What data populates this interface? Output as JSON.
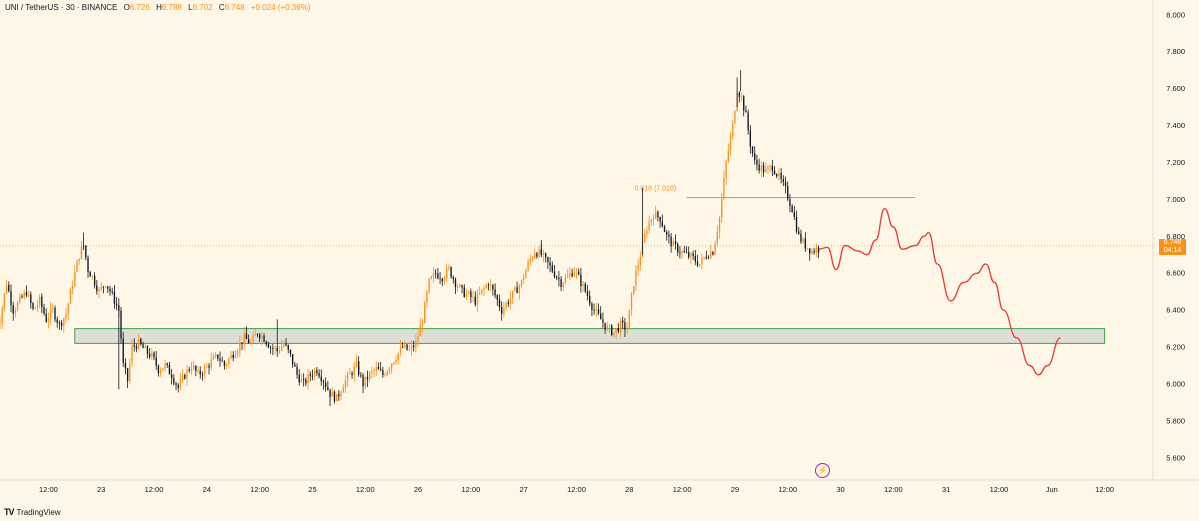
{
  "header": {
    "symbol": "UNI / TetherUS · 30 · BINANCE",
    "open_key": "O",
    "open": "6.726",
    "high_key": "H",
    "high": "6.788",
    "low_key": "L",
    "low": "6.702",
    "close_key": "C",
    "close": "6.748",
    "change": "+0.024 (+0.36%)"
  },
  "price_tag": {
    "price": "6.748",
    "countdown": "04:14"
  },
  "footer": {
    "brand": "TradingView"
  },
  "colors": {
    "background": "#fef6e6",
    "up": "#f7931a",
    "down": "#131722",
    "projection": "#e53935",
    "zone_fill": "#d9dcd4",
    "zone_border": "#43a047",
    "fib": "#f7931a",
    "price_line": "#f7931a"
  },
  "chart_data": {
    "type": "candlestick",
    "symbol": "UNI/USDT",
    "interval": "30",
    "ylim": [
      5.48,
      8.08
    ],
    "y_ticks": [
      "8.000",
      "7.800",
      "7.600",
      "7.400",
      "7.200",
      "7.000",
      "6.800",
      "6.600",
      "6.400",
      "6.200",
      "6.000",
      "5.800",
      "5.600"
    ],
    "y_tick_values": [
      8.0,
      7.8,
      7.6,
      7.4,
      7.2,
      7.0,
      6.8,
      6.6,
      6.4,
      6.2,
      6.0,
      5.8,
      5.6
    ],
    "x_ticks": [
      "12:00",
      "23",
      "12:00",
      "24",
      "12:00",
      "25",
      "12:00",
      "26",
      "12:00",
      "27",
      "12:00",
      "28",
      "12:00",
      "29",
      "12:00",
      "30",
      "12:00",
      "31",
      "12:00",
      "Jun",
      "12:00"
    ],
    "x_tick_times": [
      12,
      24,
      36,
      48,
      60,
      72,
      84,
      96,
      108,
      120,
      132,
      144,
      156,
      168,
      180,
      192,
      204,
      216,
      228,
      240,
      252
    ],
    "x_range_hours": [
      1,
      263
    ],
    "price_path": [
      [
        0,
        6.3
      ],
      [
        1.5,
        6.35
      ],
      [
        3,
        6.55
      ],
      [
        4.5,
        6.4
      ],
      [
        6,
        6.45
      ],
      [
        7.5,
        6.5
      ],
      [
        9,
        6.4
      ],
      [
        10.5,
        6.45
      ],
      [
        12,
        6.35
      ],
      [
        13.5,
        6.4
      ],
      [
        15,
        6.32
      ],
      [
        16.5,
        6.38
      ],
      [
        18,
        6.55
      ],
      [
        19.5,
        6.7
      ],
      [
        20.5,
        6.75
      ],
      [
        21.5,
        6.62
      ],
      [
        22.5,
        6.58
      ],
      [
        24,
        6.5
      ],
      [
        25.5,
        6.55
      ],
      [
        27,
        6.48
      ],
      [
        28.5,
        6.4
      ],
      [
        29.5,
        6.1
      ],
      [
        30.5,
        6.02
      ],
      [
        31.5,
        6.2
      ],
      [
        33,
        6.22
      ],
      [
        34.5,
        6.18
      ],
      [
        36,
        6.15
      ],
      [
        37.5,
        6.08
      ],
      [
        39,
        6.1
      ],
      [
        40.5,
        6.05
      ],
      [
        42,
        5.98
      ],
      [
        43.5,
        6.05
      ],
      [
        45,
        6.1
      ],
      [
        46.5,
        6.05
      ],
      [
        48,
        6.08
      ],
      [
        49.5,
        6.12
      ],
      [
        51,
        6.15
      ],
      [
        52.5,
        6.1
      ],
      [
        54,
        6.15
      ],
      [
        55.5,
        6.2
      ],
      [
        57,
        6.25
      ],
      [
        58.5,
        6.22
      ],
      [
        60,
        6.28
      ],
      [
        61.5,
        6.25
      ],
      [
        63,
        6.2
      ],
      [
        64.5,
        6.18
      ],
      [
        66,
        6.22
      ],
      [
        67.5,
        6.15
      ],
      [
        69,
        6.05
      ],
      [
        70.5,
        6.0
      ],
      [
        72,
        6.05
      ],
      [
        73.5,
        6.08
      ],
      [
        75,
        6.02
      ],
      [
        76.5,
        5.95
      ],
      [
        78,
        5.92
      ],
      [
        79.5,
        6.0
      ],
      [
        81,
        6.05
      ],
      [
        82.5,
        6.1
      ],
      [
        84,
        6.0
      ],
      [
        85.5,
        6.05
      ],
      [
        87,
        6.08
      ],
      [
        88.5,
        6.05
      ],
      [
        90,
        6.1
      ],
      [
        91.5,
        6.15
      ],
      [
        93,
        6.2
      ],
      [
        94.5,
        6.18
      ],
      [
        96,
        6.22
      ],
      [
        97.5,
        6.35
      ],
      [
        99,
        6.55
      ],
      [
        100.5,
        6.6
      ],
      [
        102,
        6.58
      ],
      [
        103.5,
        6.62
      ],
      [
        105,
        6.55
      ],
      [
        106.5,
        6.5
      ],
      [
        108,
        6.48
      ],
      [
        109.5,
        6.45
      ],
      [
        111,
        6.5
      ],
      [
        112.5,
        6.55
      ],
      [
        114,
        6.48
      ],
      [
        115.5,
        6.4
      ],
      [
        117,
        6.45
      ],
      [
        118.5,
        6.5
      ],
      [
        120,
        6.55
      ],
      [
        121.5,
        6.65
      ],
      [
        123,
        6.72
      ],
      [
        124.5,
        6.7
      ],
      [
        126,
        6.65
      ],
      [
        127.5,
        6.6
      ],
      [
        129,
        6.55
      ],
      [
        130.5,
        6.58
      ],
      [
        132,
        6.62
      ],
      [
        133.5,
        6.55
      ],
      [
        135,
        6.48
      ],
      [
        136.5,
        6.4
      ],
      [
        138,
        6.35
      ],
      [
        139.5,
        6.3
      ],
      [
        141,
        6.28
      ],
      [
        142.5,
        6.32
      ],
      [
        144,
        6.3
      ],
      [
        145.5,
        6.55
      ],
      [
        147,
        6.7
      ],
      [
        148.5,
        6.85
      ],
      [
        150,
        6.92
      ],
      [
        151.5,
        6.9
      ],
      [
        153,
        6.8
      ],
      [
        154.5,
        6.75
      ],
      [
        156,
        6.72
      ],
      [
        157.5,
        6.7
      ],
      [
        159,
        6.68
      ],
      [
        160.5,
        6.65
      ],
      [
        162,
        6.7
      ],
      [
        163.5,
        6.72
      ],
      [
        165,
        6.9
      ],
      [
        166.5,
        7.2
      ],
      [
        168,
        7.4
      ],
      [
        169,
        7.6
      ],
      [
        170,
        7.55
      ],
      [
        171,
        7.45
      ],
      [
        172,
        7.3
      ],
      [
        173,
        7.2
      ],
      [
        174,
        7.18
      ],
      [
        175.5,
        7.15
      ],
      [
        177,
        7.18
      ],
      [
        178.5,
        7.12
      ],
      [
        180,
        7.05
      ],
      [
        181.5,
        6.95
      ],
      [
        183,
        6.8
      ],
      [
        184.5,
        6.75
      ],
      [
        186,
        6.72
      ],
      [
        187,
        6.73
      ]
    ],
    "projection": [
      [
        187,
        6.73
      ],
      [
        189,
        6.74
      ],
      [
        191,
        6.62
      ],
      [
        193,
        6.75
      ],
      [
        196,
        6.72
      ],
      [
        198,
        6.7
      ],
      [
        200,
        6.78
      ],
      [
        202,
        6.95
      ],
      [
        204,
        6.85
      ],
      [
        206,
        6.73
      ],
      [
        209,
        6.75
      ],
      [
        211,
        6.8
      ],
      [
        212,
        6.82
      ],
      [
        214,
        6.65
      ],
      [
        217,
        6.45
      ],
      [
        220,
        6.55
      ],
      [
        223,
        6.6
      ],
      [
        225,
        6.65
      ],
      [
        227,
        6.55
      ],
      [
        229,
        6.4
      ],
      [
        232,
        6.25
      ],
      [
        235,
        6.1
      ],
      [
        237,
        6.05
      ],
      [
        239,
        6.1
      ],
      [
        242,
        6.25
      ]
    ],
    "zone": {
      "x0": 18,
      "x1": 252,
      "y_low": 6.22,
      "y_high": 6.3
    },
    "fib": {
      "label": "0.618 (7.010)",
      "value": 7.01,
      "x0": 157,
      "x1": 209
    },
    "last_price": 6.748
  }
}
